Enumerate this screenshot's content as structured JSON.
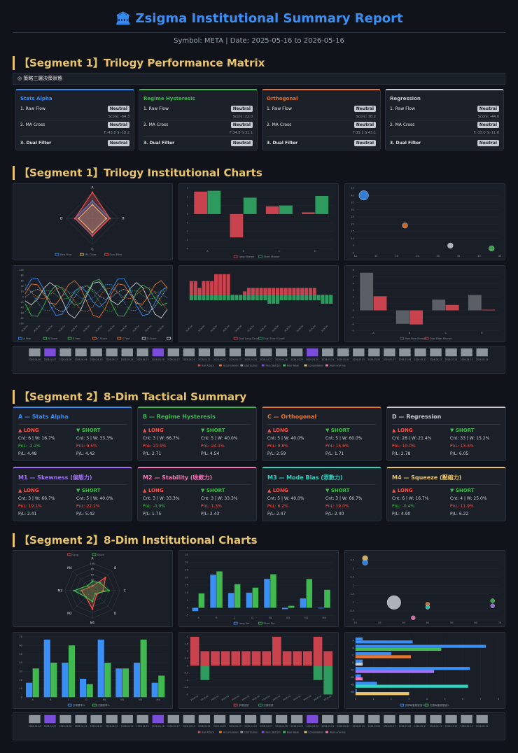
{
  "header": {
    "title": "Zsigma Institutional Summary Report",
    "subtitle": "Symbol: META | Date: 2025-05-16 to 2026-05-16"
  },
  "seg1": {
    "matrix_title": "【Segment 1】Trilogy Performance Matrix",
    "bar_label": "策略三層決策狀態",
    "charts_title": "【Segment 1】Trilogy Institutional Charts"
  },
  "seg2": {
    "summary_title": "【Segment 2】8-Dim Tactical Summary",
    "charts_title": "【Segment 2】8-Dim Institutional Charts"
  },
  "matrix": [
    {
      "name": "Stats Alpha",
      "color": "#3b8ef3",
      "r1": "1. Raw Flow",
      "r2": "2. MA Cross",
      "r3": "3. Dual Filter",
      "s1": "Score: -64.3",
      "s2": "F:-43.8 S:-18.2",
      "b1": "Neutral",
      "b2": "Neutral",
      "b3": "Neutral"
    },
    {
      "name": "Regime Hysteresis",
      "color": "#3fb950",
      "r1": "1. Raw Flow",
      "r2": "2. MA Cross",
      "r3": "3. Dual Filter",
      "s1": "Score: 22.0",
      "s2": "F:34.8 S:31.1",
      "b1": "Neutral",
      "b2": "Neutral",
      "b3": "Neutral"
    },
    {
      "name": "Orthogonal",
      "color": "#e8742c",
      "r1": "1. Raw Flow",
      "r2": "2. MA Cross",
      "r3": "3. Dual Filter",
      "s1": "Score: 38.2",
      "s2": "F:35.1 S:43.1",
      "b1": "Neutral",
      "b2": "Neutral",
      "b3": "Neutral"
    },
    {
      "name": "Regression",
      "color": "#c8ccd2",
      "r1": "1. Raw Flow",
      "r2": "2. MA Cross",
      "r3": "3. Dual Filter",
      "s1": "Score: -44.0",
      "s2": "F:-33.0 S:-11.8",
      "b1": "Neutral",
      "b2": "Neutral",
      "b3": "Neutral"
    }
  ],
  "tactical": [
    {
      "name": "A — Stats Alpha",
      "color": "#3b8ef3",
      "lh": "▲ LONG",
      "sh": "▼ SHORT",
      "l1": "Cnt: 6 | W: 16.7%",
      "l2": "PnL: -2.2%",
      "l3": "P/L: 4.48",
      "s1": "Cnt: 3 | W: 33.3%",
      "s2": "PnL: 9.5%",
      "s3": "P/L: 4.42",
      "l2c": "g",
      "s2c": "r"
    },
    {
      "name": "B — Regime Hysteresis",
      "color": "#3fb950",
      "lh": "▲ LONG",
      "sh": "▼ SHORT",
      "l1": "Cnt: 3 | W: 66.7%",
      "l2": "PnL: 21.9%",
      "l3": "P/L: 2.71",
      "s1": "Cnt: 5 | W: 40.0%",
      "s2": "PnL: 24.1%",
      "s3": "P/L: 4.54",
      "l2c": "r",
      "s2c": "r"
    },
    {
      "name": "C — Orthogonal",
      "color": "#e8742c",
      "lh": "▲ LONG",
      "sh": "▼ SHORT",
      "l1": "Cnt: 5 | W: 40.0%",
      "l2": "PnL: 9.8%",
      "l3": "P/L: 2.59",
      "s1": "Cnt: 5 | W: 60.0%",
      "s2": "PnL: 15.6%",
      "s3": "P/L: 1.71",
      "l2c": "r",
      "s2c": "r"
    },
    {
      "name": "D — Regression",
      "color": "#c8ccd2",
      "lh": "▲ LONG",
      "sh": "▼ SHORT",
      "l1": "Cnt: 28 | W: 21.4%",
      "l2": "PnL: 10.0%",
      "l3": "P/L: 2.78",
      "s1": "Cnt: 33 | W: 15.2%",
      "s2": "PnL: 13.3%",
      "s3": "P/L: 6.05",
      "l2c": "r",
      "s2c": "r"
    },
    {
      "name": "M1 — Skewness (偏態力)",
      "color": "#a371f7",
      "lh": "▲ LONG",
      "sh": "▼ SHORT",
      "l1": "Cnt: 3 | W: 66.7%",
      "l2": "PnL: 19.1%",
      "l3": "P/L: 2.41",
      "s1": "Cnt: 5 | W: 40.0%",
      "s2": "PnL: 22.2%",
      "s3": "P/L: 5.42",
      "l2c": "r",
      "s2c": "r"
    },
    {
      "name": "M2 — Stability (收斂力)",
      "color": "#f778ba",
      "lh": "▲ LONG",
      "sh": "▼ SHORT",
      "l1": "Cnt: 3 | W: 33.3%",
      "l2": "PnL: -0.9%",
      "l3": "P/L: 1.75",
      "s1": "Cnt: 3 | W: 33.3%",
      "s2": "PnL: 1.3%",
      "s3": "P/L: 2.43",
      "l2c": "g",
      "s2c": "r"
    },
    {
      "name": "M3 — Mode Bias (眾數力)",
      "color": "#2dd4bf",
      "lh": "▲ LONG",
      "sh": "▼ SHORT",
      "l1": "Cnt: 5 | W: 40.0%",
      "l2": "PnL: 6.2%",
      "l3": "P/L: 2.47",
      "s1": "Cnt: 3 | W: 66.7%",
      "s2": "PnL: 19.0%",
      "s3": "P/L: 2.40",
      "l2c": "r",
      "s2c": "r"
    },
    {
      "name": "M4 — Squeeze (壓縮力)",
      "color": "#e9c46a",
      "lh": "▲ LONG",
      "sh": "▼ SHORT",
      "l1": "Cnt: 6 | W: 16.7%",
      "l2": "PnL: -0.4%",
      "l3": "P/L: 4.90",
      "s1": "Cnt: 4 | W: 25.0%",
      "s2": "PnL: 11.9%",
      "s3": "P/L: 6.22",
      "l2c": "g",
      "s2c": "r"
    }
  ],
  "chart_data": [
    {
      "id": "radar1",
      "type": "radar",
      "axes": [
        "A",
        "B",
        "C",
        "D"
      ],
      "series": [
        {
          "name": "Raw Flow",
          "color": "#3b8ef3",
          "values": [
            2,
            2,
            2,
            2
          ]
        },
        {
          "name": "MA Cross",
          "color": "#e9c46a",
          "values": [
            1.6,
            1.6,
            1.6,
            1.6
          ]
        },
        {
          "name": "Dual Filter",
          "color": "#f85149",
          "values": [
            3,
            2,
            2,
            2
          ]
        }
      ],
      "legend": [
        "Raw Flow",
        "MA Cross",
        "Dual Filter"
      ]
    },
    {
      "id": "bar1",
      "type": "bar",
      "categories": [
        "A",
        "B",
        "C",
        "D"
      ],
      "series": [
        {
          "name": "Long Sharpe",
          "color": "#c8434e",
          "values": [
            2.6,
            -2.7,
            0.9,
            0.2
          ]
        },
        {
          "name": "Short Sharpe",
          "color": "#2e9a5e",
          "values": [
            2.7,
            1.9,
            1.0,
            2.1
          ]
        }
      ],
      "ylim": [
        -4,
        3
      ],
      "yticks": [
        "-4",
        "-3",
        "-2",
        "-1",
        "0",
        "1",
        "2",
        "3"
      ]
    },
    {
      "id": "scatter1",
      "type": "scatter",
      "points": [
        {
          "x": 12,
          "y": 40,
          "r": 7,
          "color": "#3b8ef3"
        },
        {
          "x": 22,
          "y": 19,
          "r": 4,
          "color": "#e8742c"
        },
        {
          "x": 33,
          "y": 5,
          "r": 4,
          "color": "#c8ccd2"
        },
        {
          "x": 43,
          "y": 3,
          "r": 4,
          "color": "#3fb950"
        }
      ],
      "yticks": [
        "0",
        "5",
        "10",
        "15",
        "20",
        "25",
        "30",
        "35",
        "40",
        "45"
      ],
      "xticks": [
        "10",
        "15",
        "20",
        "25",
        "30",
        "35",
        "40",
        "45"
      ]
    },
    {
      "id": "line1",
      "type": "line",
      "legend": [
        "A Score",
        "A Fast",
        "B Score",
        "B Fast",
        "C Score",
        "C Fast",
        "D Score",
        "D Fast"
      ],
      "yticks": [
        "100",
        "80",
        "60",
        "40",
        "20",
        "0",
        "-20",
        "-40",
        "-60",
        "-80",
        "-100"
      ]
    },
    {
      "id": "count1",
      "type": "bar",
      "legend": [
        "Dual Long Count",
        "Dual Short Count"
      ]
    },
    {
      "id": "bar2",
      "type": "bar",
      "categories": [
        "A",
        "B",
        "C",
        "D"
      ],
      "series": [
        {
          "name": "Raw Flow Sharpe",
          "color": "#5a5f66",
          "values": [
            5.6,
            -2.0,
            1.6,
            2.3
          ]
        },
        {
          "name": "Dual Filter Sharpe",
          "color": "#c8434e",
          "values": [
            2.1,
            -2.1,
            0.8,
            0.1
          ]
        }
      ],
      "yticks": [
        "-3",
        "-2",
        "-1",
        "0",
        "1",
        "2",
        "3",
        "4",
        "5",
        "6"
      ]
    },
    {
      "id": "strip1",
      "type": "heatmap",
      "dates": [
        "2026-04-06",
        "2026-04-07",
        "2026-04-08",
        "2026-04-09",
        "2026-04-10",
        "2026-04-13",
        "2026-04-14",
        "2026-04-15",
        "2026-04-16",
        "2026-04-17",
        "2026-04-20",
        "2026-04-21",
        "2026-04-22",
        "2026-04-23",
        "2026-04-24",
        "2026-04-27",
        "2026-04-28",
        "2026-04-29",
        "2026-04-30",
        "2026-05-01",
        "2026-05-04",
        "2026-05-05",
        "2026-05-06",
        "2026-05-07",
        "2026-05-08",
        "2026-05-11",
        "2026-05-12",
        "2026-05-13",
        "2026-05-14",
        "2026-05-15"
      ],
      "colors": [
        "#8f959d",
        "#7c4ddb",
        "#8f959d",
        "#8f959d",
        "#8f959d",
        "#8f959d",
        "#8f959d",
        "#8f959d",
        "#7c4ddb",
        "#8f959d",
        "#8f959d",
        "#8f959d",
        "#8f959d",
        "#8f959d",
        "#8f959d",
        "#8f959d",
        "#8f959d",
        "#8f959d",
        "#7c4ddb",
        "#8f959d",
        "#8f959d",
        "#8f959d",
        "#8f959d",
        "#8f959d",
        "#8f959d",
        "#8f959d",
        "#8f959d",
        "#8f959d",
        "#8f959d",
        "#8f959d"
      ],
      "legend": [
        "Bull Attack",
        "Accumulation",
        "Distribution",
        "Panic Bottom",
        "Bear Weak",
        "Consolidation",
        "Wash-and-rise"
      ]
    },
    {
      "id": "radar2",
      "type": "radar",
      "axes": [
        "A",
        "B",
        "C",
        "D",
        "M1",
        "M2",
        "M3",
        "M4"
      ],
      "series": [
        {
          "name": "Long",
          "color": "#f85149",
          "values": [
            16.7,
            66.7,
            40,
            21.4,
            66.7,
            33.3,
            40,
            16.7
          ]
        },
        {
          "name": "Short",
          "color": "#3fb950",
          "values": [
            33.3,
            40,
            60,
            15.2,
            40,
            33.3,
            66.7,
            25
          ]
        }
      ],
      "legend": [
        "Long",
        "Short"
      ],
      "rticks": [
        "100",
        "80",
        "60",
        "40",
        "20"
      ]
    },
    {
      "id": "bar3",
      "type": "bar",
      "categories": [
        "A",
        "B",
        "C",
        "D",
        "M1",
        "M2",
        "M3",
        "M4"
      ],
      "series": [
        {
          "name": "Long PnL",
          "color": "#3b8ef3",
          "values": [
            -2.2,
            21.9,
            9.8,
            10.0,
            19.1,
            -0.9,
            6.2,
            -0.4
          ]
        },
        {
          "name": "Short PnL",
          "color": "#3fb950",
          "values": [
            9.5,
            24.1,
            15.6,
            13.3,
            22.2,
            1.3,
            19.0,
            11.9
          ]
        }
      ],
      "yticks": [
        "-5",
        "0",
        "5",
        "10",
        "15",
        "20",
        "25",
        "30",
        "35"
      ]
    },
    {
      "id": "scatter2",
      "type": "scatter",
      "points": [
        {
          "x": 14,
          "y": 3.6,
          "r": 4,
          "color": "#e9c46a"
        },
        {
          "x": 14,
          "y": 3.35,
          "r": 4,
          "color": "#3b8ef3"
        },
        {
          "x": 26,
          "y": 1.0,
          "r": 10,
          "color": "#c8ccd2"
        },
        {
          "x": 40,
          "y": 0.9,
          "r": 3,
          "color": "#e8742c"
        },
        {
          "x": 40,
          "y": 0.72,
          "r": 3,
          "color": "#2dd4bf"
        },
        {
          "x": 34,
          "y": 0.1,
          "r": 3,
          "color": "#f778ba"
        },
        {
          "x": 67,
          "y": 1.1,
          "r": 3,
          "color": "#3fb950"
        },
        {
          "x": 67,
          "y": 0.8,
          "r": 3,
          "color": "#a371f7"
        }
      ],
      "yticks": [
        "0",
        "0.5",
        "1",
        "1.5",
        "2",
        "2.5",
        "3",
        "3.5"
      ],
      "xticks": [
        "10",
        "20",
        "30",
        "40",
        "50",
        "60",
        "70"
      ]
    },
    {
      "id": "bar4",
      "type": "bar",
      "categories": [
        "A",
        "B",
        "C",
        "D",
        "M1",
        "M2",
        "M3",
        "M4"
      ],
      "series": [
        {
          "name": "多頭勝率%",
          "color": "#3b8ef3",
          "values": [
            16.7,
            66.7,
            40,
            21.4,
            66.7,
            33.3,
            40,
            16.7
          ]
        },
        {
          "name": "空頭勝率%",
          "color": "#3fb950",
          "values": [
            33.3,
            40,
            60,
            15.2,
            40,
            33.3,
            66.7,
            25
          ]
        }
      ],
      "yticks": [
        "0",
        "10",
        "20",
        "30",
        "40",
        "50",
        "60",
        "70"
      ]
    },
    {
      "id": "bar5",
      "type": "bar",
      "series": [
        {
          "name": "多頭信號",
          "color": "#c8434e"
        },
        {
          "name": "空頭信號",
          "color": "#2e9a5e"
        }
      ],
      "yticks": [
        "-2",
        "-1.5",
        "-1",
        "-0.5",
        "0",
        "0.5",
        "1",
        "1.5",
        "2"
      ]
    },
    {
      "id": "hbar1",
      "type": "bar",
      "categories": [
        "A",
        "B",
        "C",
        "D",
        "M1",
        "M2",
        "M3",
        "M4"
      ],
      "series": [
        {
          "name": "多頭每筆期望值%",
          "color": "#3b8ef3",
          "values": [
            0.4,
            7.3,
            2.0,
            0.4,
            6.4,
            0.3,
            1.2,
            0.07
          ]
        },
        {
          "name": "空頭每筆期望值%",
          "color": "#3fb950",
          "values": [
            3.2,
            4.8,
            3.1,
            0.4,
            4.4,
            0.4,
            6.3,
            3.0
          ]
        }
      ],
      "xticks": [
        "0",
        "1",
        "2",
        "3",
        "4",
        "5",
        "6",
        "7",
        "8"
      ]
    },
    {
      "id": "strip2",
      "type": "heatmap"
    }
  ]
}
